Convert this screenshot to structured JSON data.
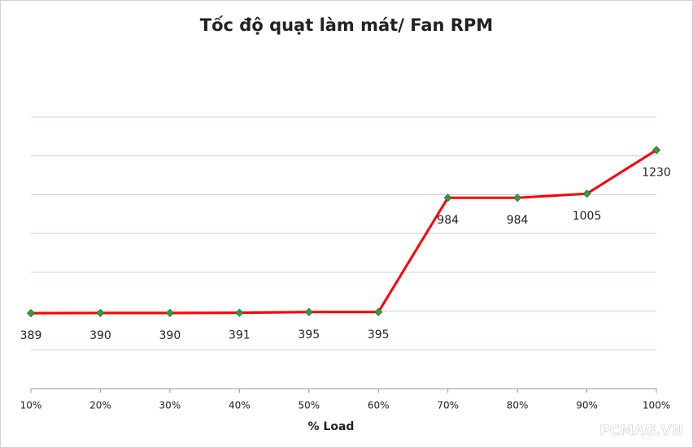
{
  "chart_data": {
    "type": "line",
    "title": "Tốc độ quạt làm mát/ Fan RPM",
    "x_label": "% Load",
    "categories": [
      "10%",
      "20%",
      "30%",
      "40%",
      "50%",
      "60%",
      "70%",
      "80%",
      "90%",
      "100%"
    ],
    "series": [
      {
        "name": "Fan RPM",
        "color": "#ff0000",
        "marker_color": "#3c9a3c",
        "values": [
          389,
          390,
          390,
          391,
          395,
          395,
          984,
          984,
          1005,
          1230
        ]
      }
    ],
    "ylim": [
      0,
      1400
    ],
    "yticks": [
      0,
      200,
      400,
      600,
      800,
      1000,
      1200,
      1400
    ],
    "grid": true,
    "watermark": "PCMAG.VN"
  }
}
